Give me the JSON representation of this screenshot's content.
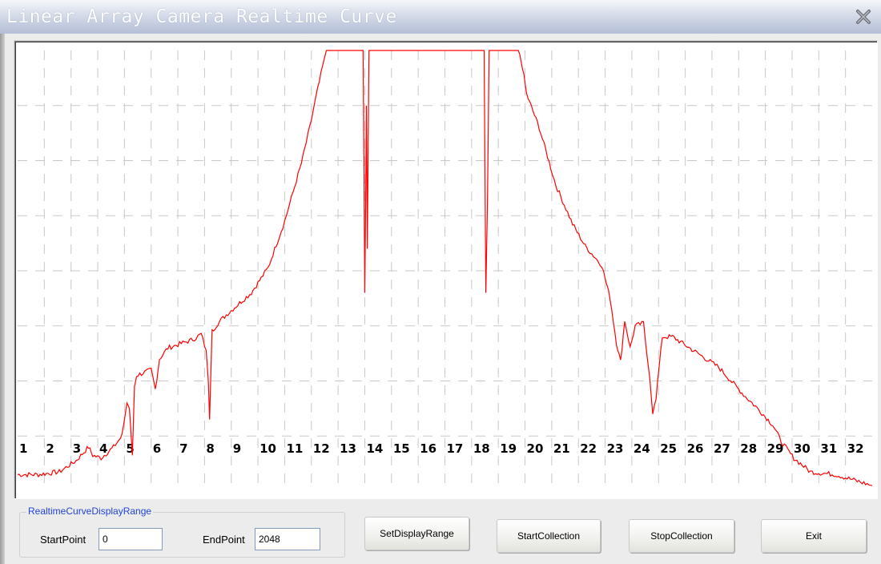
{
  "window": {
    "title": "Linear Array Camera Realtime Curve"
  },
  "chart_data": {
    "type": "line",
    "title": "",
    "xlabel": "",
    "ylabel": "",
    "xlim": [
      0,
      2048
    ],
    "ylim": [
      0,
      8
    ],
    "grid": true,
    "grid_vertical_divisions": 32,
    "grid_horizontal_divisions": 8,
    "line_color": "#ff0000",
    "channel_labels": [
      "1",
      "2",
      "3",
      "4",
      "5",
      "6",
      "7",
      "8",
      "9",
      "10",
      "11",
      "12",
      "13",
      "14",
      "15",
      "16",
      "17",
      "18",
      "19",
      "20",
      "21",
      "22",
      "23",
      "24",
      "25",
      "26",
      "27",
      "28",
      "29",
      "30",
      "31",
      "32"
    ],
    "series": [
      {
        "points": [
          [
            0,
            0.3
          ],
          [
            50,
            0.3
          ],
          [
            100,
            0.35
          ],
          [
            140,
            0.55
          ],
          [
            170,
            0.8
          ],
          [
            180,
            0.65
          ],
          [
            200,
            0.6
          ],
          [
            230,
            0.8
          ],
          [
            250,
            1.0
          ],
          [
            262,
            1.6
          ],
          [
            268,
            1.5
          ],
          [
            275,
            0.65
          ],
          [
            280,
            1.9
          ],
          [
            285,
            2.1
          ],
          [
            320,
            2.2
          ],
          [
            330,
            1.85
          ],
          [
            340,
            2.4
          ],
          [
            360,
            2.6
          ],
          [
            420,
            2.75
          ],
          [
            440,
            2.85
          ],
          [
            452,
            2.55
          ],
          [
            457,
            2.0
          ],
          [
            460,
            1.3
          ],
          [
            466,
            2.9
          ],
          [
            480,
            3.05
          ],
          [
            500,
            3.2
          ],
          [
            560,
            3.6
          ],
          [
            600,
            4.05
          ],
          [
            640,
            4.9
          ],
          [
            680,
            5.95
          ],
          [
            700,
            6.6
          ],
          [
            715,
            7.15
          ],
          [
            735,
            7.85
          ],
          [
            740,
            8.0
          ],
          [
            828,
            8.0
          ],
          [
            832,
            3.6
          ],
          [
            836,
            7.0
          ],
          [
            838,
            4.4
          ],
          [
            842,
            8.0
          ],
          [
            1118,
            8.0
          ],
          [
            1122,
            3.6
          ],
          [
            1126,
            5.2
          ],
          [
            1130,
            8.0
          ],
          [
            1200,
            8.0
          ],
          [
            1210,
            7.7
          ],
          [
            1220,
            7.2
          ],
          [
            1250,
            6.6
          ],
          [
            1290,
            5.55
          ],
          [
            1330,
            4.85
          ],
          [
            1360,
            4.45
          ],
          [
            1400,
            4.1
          ],
          [
            1420,
            3.5
          ],
          [
            1435,
            2.7
          ],
          [
            1445,
            2.35
          ],
          [
            1455,
            3.1
          ],
          [
            1468,
            2.6
          ],
          [
            1480,
            3.0
          ],
          [
            1500,
            3.05
          ],
          [
            1515,
            2.05
          ],
          [
            1522,
            1.4
          ],
          [
            1530,
            1.7
          ],
          [
            1545,
            2.8
          ],
          [
            1570,
            2.8
          ],
          [
            1620,
            2.55
          ],
          [
            1680,
            2.25
          ],
          [
            1740,
            1.75
          ],
          [
            1780,
            1.45
          ],
          [
            1810,
            1.2
          ],
          [
            1830,
            0.9
          ],
          [
            1860,
            0.6
          ],
          [
            1900,
            0.35
          ],
          [
            1960,
            0.3
          ],
          [
            2048,
            0.1
          ]
        ]
      }
    ]
  },
  "range_group": {
    "caption": "RealtimeCurveDisplayRange",
    "start_label": "StartPoint",
    "start_value": "0",
    "end_label": "EndPoint",
    "end_value": "2048"
  },
  "buttons": {
    "set_range": "SetDisplayRange",
    "start": "StartCollection",
    "stop": "StopCollection",
    "exit": "Exit"
  },
  "icons": {
    "close": "close-icon"
  }
}
